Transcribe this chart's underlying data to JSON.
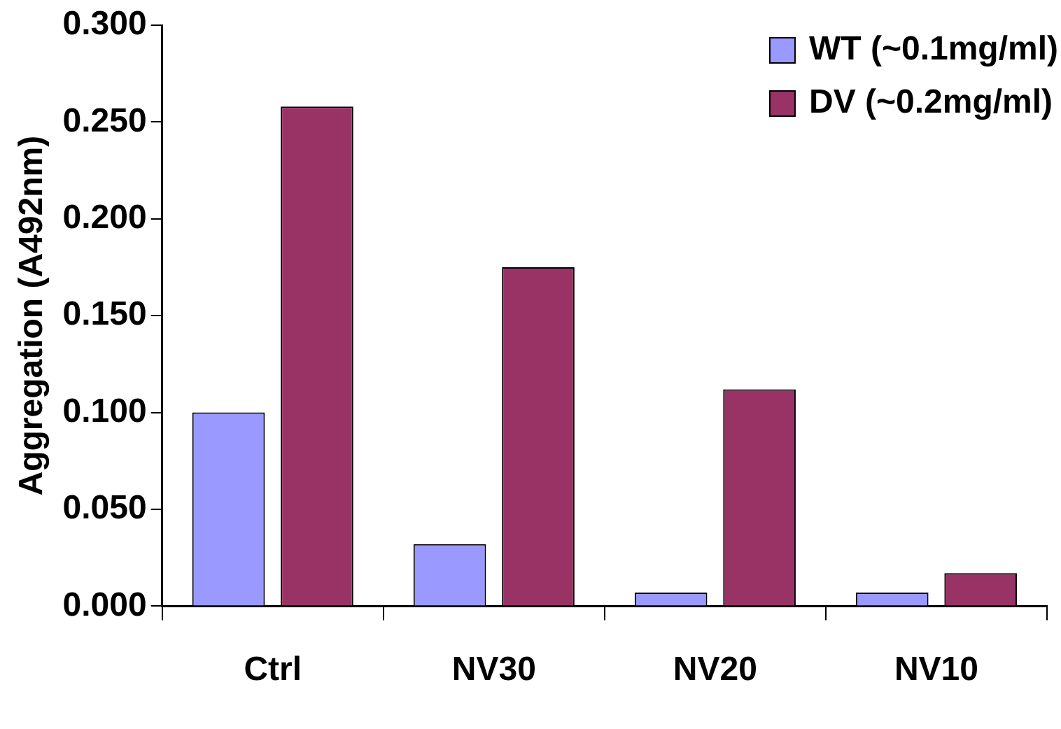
{
  "chart_data": {
    "type": "bar",
    "ylabel": "Aggregation (A492nm)",
    "categories": [
      "Ctrl",
      "NV30",
      "NV20",
      "NV10"
    ],
    "series": [
      {
        "name": "WT (~0.1mg/ml)",
        "color": "#9999ff",
        "values": [
          0.1,
          0.032,
          0.007,
          0.007
        ]
      },
      {
        "name": "DV (~0.2mg/ml)",
        "color": "#993366",
        "values": [
          0.258,
          0.175,
          0.112,
          0.017
        ]
      }
    ],
    "ylim": [
      0,
      0.3
    ],
    "yticks": [
      {
        "value": 0,
        "label": "0.000"
      },
      {
        "value": 0.05,
        "label": "0.050"
      },
      {
        "value": 0.1,
        "label": "0.100"
      },
      {
        "value": 0.15,
        "label": "0.150"
      },
      {
        "value": 0.2,
        "label": "0.200"
      },
      {
        "value": 0.25,
        "label": "0.250"
      },
      {
        "value": 0.3,
        "label": "0.300"
      }
    ],
    "grid": false,
    "legend": "top right"
  }
}
